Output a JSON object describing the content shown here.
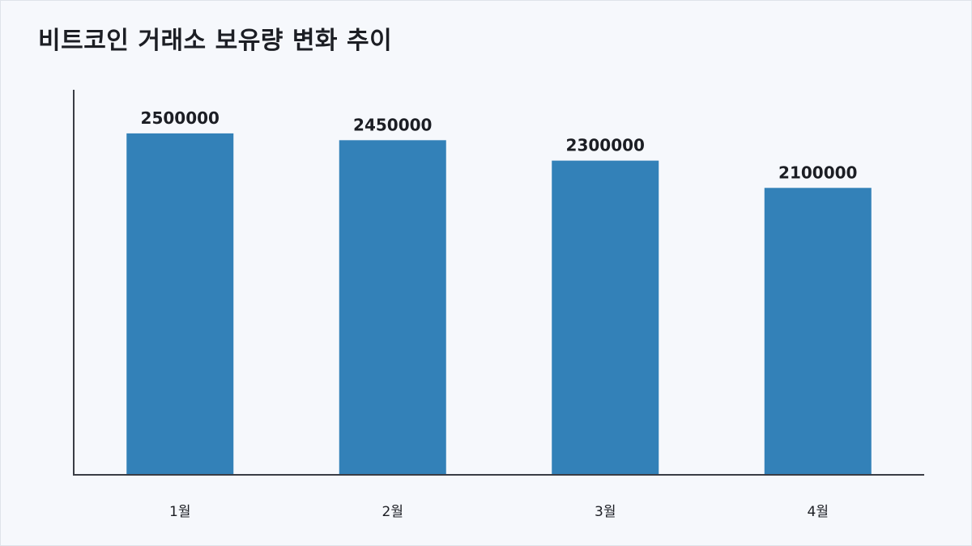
{
  "chart_data": {
    "type": "bar",
    "title": "비트코인 거래소 보유량 변화 추이",
    "categories": [
      "1월",
      "2월",
      "3월",
      "4월"
    ],
    "values": [
      2500000,
      2450000,
      2300000,
      2100000
    ],
    "xlabel": "",
    "ylabel": "",
    "ylim": [
      0,
      2820000
    ],
    "grid": false,
    "legend": "none",
    "colors": {
      "bar": "#3381b8",
      "axis": "#3a3d45",
      "text": "#1c1e24",
      "background": "#f6f8fc"
    }
  }
}
